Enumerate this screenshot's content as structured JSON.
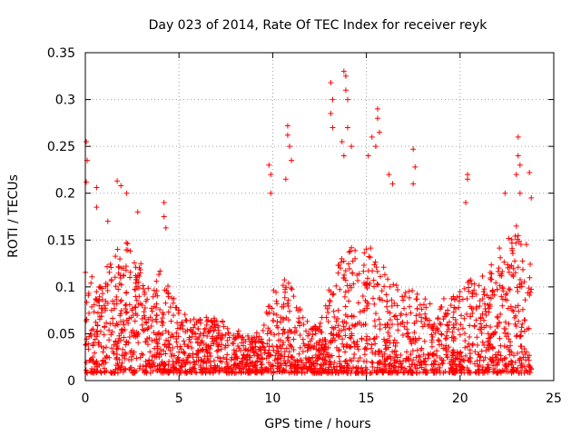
{
  "chart_data": {
    "type": "scatter",
    "title": "Day 023 of 2014, Rate Of TEC Index for receiver reyk",
    "xlabel": "GPS time / hours",
    "ylabel": "ROTI / TECUs",
    "xlim": [
      0,
      25
    ],
    "ylim": [
      0,
      0.35
    ],
    "grid": true,
    "marker": "+",
    "color": "#ff0000",
    "x_ticks": [
      0,
      5,
      10,
      15,
      20,
      25
    ],
    "y_ticks": [
      0,
      0.05,
      0.1,
      0.15,
      0.2,
      0.25,
      0.3,
      0.35
    ],
    "x_tick_labels": [
      "0",
      "5",
      "10",
      "15",
      "20",
      "25"
    ],
    "y_tick_labels": [
      "0",
      "0.05",
      "0.1",
      "0.15",
      "0.2",
      "0.25",
      "0.3",
      "0.35"
    ],
    "data_range_hours": [
      0,
      23.8
    ],
    "density_envelope": {
      "x": [
        0,
        0.5,
        1,
        1.5,
        2,
        2.5,
        3,
        3.5,
        4,
        4.5,
        5,
        5.5,
        6,
        6.5,
        7,
        7.5,
        8,
        8.5,
        9,
        9.5,
        10,
        10.5,
        11,
        11.5,
        12,
        12.5,
        13,
        13.5,
        14,
        14.5,
        15,
        15.5,
        16,
        16.5,
        17,
        17.5,
        18,
        18.5,
        19,
        19.5,
        20,
        20.5,
        21,
        21.5,
        22,
        22.5,
        23,
        23.5,
        23.8
      ],
      "y": [
        0.12,
        0.1,
        0.11,
        0.13,
        0.15,
        0.14,
        0.12,
        0.1,
        0.11,
        0.09,
        0.07,
        0.06,
        0.06,
        0.06,
        0.06,
        0.06,
        0.05,
        0.04,
        0.04,
        0.06,
        0.09,
        0.1,
        0.1,
        0.07,
        0.05,
        0.05,
        0.09,
        0.12,
        0.14,
        0.13,
        0.14,
        0.13,
        0.11,
        0.1,
        0.09,
        0.09,
        0.08,
        0.08,
        0.08,
        0.08,
        0.09,
        0.1,
        0.1,
        0.11,
        0.13,
        0.15,
        0.16,
        0.15,
        0.12
      ]
    },
    "outliers": [
      {
        "x": 0.05,
        "y": 0.255
      },
      {
        "x": 0.1,
        "y": 0.235
      },
      {
        "x": 0.05,
        "y": 0.212
      },
      {
        "x": 0.6,
        "y": 0.206
      },
      {
        "x": 0.6,
        "y": 0.185
      },
      {
        "x": 1.2,
        "y": 0.17
      },
      {
        "x": 1.7,
        "y": 0.213
      },
      {
        "x": 1.9,
        "y": 0.208
      },
      {
        "x": 2.2,
        "y": 0.2
      },
      {
        "x": 2.8,
        "y": 0.18
      },
      {
        "x": 4.2,
        "y": 0.19
      },
      {
        "x": 4.2,
        "y": 0.175
      },
      {
        "x": 4.3,
        "y": 0.163
      },
      {
        "x": 9.8,
        "y": 0.23
      },
      {
        "x": 9.9,
        "y": 0.22
      },
      {
        "x": 9.9,
        "y": 0.2
      },
      {
        "x": 10.8,
        "y": 0.272
      },
      {
        "x": 10.8,
        "y": 0.262
      },
      {
        "x": 10.9,
        "y": 0.25
      },
      {
        "x": 11.0,
        "y": 0.235
      },
      {
        "x": 10.7,
        "y": 0.215
      },
      {
        "x": 13.1,
        "y": 0.318
      },
      {
        "x": 13.2,
        "y": 0.3
      },
      {
        "x": 13.1,
        "y": 0.285
      },
      {
        "x": 13.2,
        "y": 0.27
      },
      {
        "x": 13.8,
        "y": 0.33
      },
      {
        "x": 13.9,
        "y": 0.325
      },
      {
        "x": 13.9,
        "y": 0.31
      },
      {
        "x": 14.0,
        "y": 0.3
      },
      {
        "x": 14.0,
        "y": 0.27
      },
      {
        "x": 13.7,
        "y": 0.255
      },
      {
        "x": 13.8,
        "y": 0.24
      },
      {
        "x": 14.2,
        "y": 0.25
      },
      {
        "x": 15.6,
        "y": 0.29
      },
      {
        "x": 15.6,
        "y": 0.28
      },
      {
        "x": 15.7,
        "y": 0.265
      },
      {
        "x": 15.5,
        "y": 0.25
      },
      {
        "x": 15.3,
        "y": 0.26
      },
      {
        "x": 15.1,
        "y": 0.24
      },
      {
        "x": 16.2,
        "y": 0.22
      },
      {
        "x": 16.4,
        "y": 0.21
      },
      {
        "x": 17.5,
        "y": 0.247
      },
      {
        "x": 17.6,
        "y": 0.228
      },
      {
        "x": 17.5,
        "y": 0.21
      },
      {
        "x": 20.4,
        "y": 0.22
      },
      {
        "x": 20.4,
        "y": 0.215
      },
      {
        "x": 20.3,
        "y": 0.19
      },
      {
        "x": 22.4,
        "y": 0.2
      },
      {
        "x": 23.1,
        "y": 0.26
      },
      {
        "x": 23.1,
        "y": 0.24
      },
      {
        "x": 23.2,
        "y": 0.23
      },
      {
        "x": 23.0,
        "y": 0.22
      },
      {
        "x": 23.2,
        "y": 0.2
      },
      {
        "x": 23.7,
        "y": 0.222
      },
      {
        "x": 23.8,
        "y": 0.195
      }
    ]
  }
}
